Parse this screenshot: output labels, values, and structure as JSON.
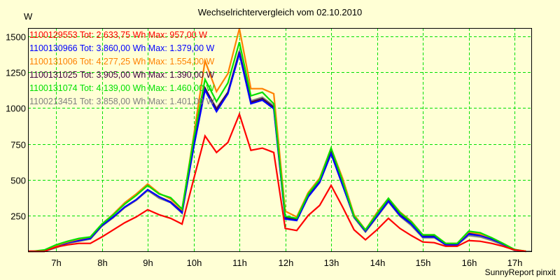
{
  "chart_data": {
    "type": "line",
    "title": "Wechselrichtervergleich vom 02.10.2010",
    "xlabel": "",
    "ylabel": "W",
    "ylim": [
      0,
      1560
    ],
    "xlim": [
      6.0,
      17.5
    ],
    "grid": true,
    "legend_position": "top-left inside",
    "y_ticks": [
      250,
      500,
      750,
      1000,
      1250,
      1500
    ],
    "x_ticks": [
      "7h",
      "8h",
      "9h",
      "10h",
      "11h",
      "12h",
      "13h",
      "14h",
      "15h",
      "16h",
      "17h"
    ],
    "x": [
      6.5,
      6.75,
      7.0,
      7.25,
      7.5,
      7.75,
      8.0,
      8.25,
      8.5,
      8.75,
      9.0,
      9.25,
      9.5,
      9.75,
      10.0,
      10.25,
      10.5,
      10.75,
      11.0,
      11.25,
      11.5,
      11.75,
      12.0,
      12.25,
      12.5,
      12.75,
      13.0,
      13.25,
      13.5,
      13.75,
      14.0,
      14.25,
      14.5,
      14.75,
      15.0,
      15.25,
      15.5,
      15.75,
      16.0,
      16.25,
      16.5,
      16.75,
      17.0,
      17.25
    ],
    "series": [
      {
        "name": "1100129553",
        "legend": "1100129553 Tot: 2.633,75 Wh Max: 957,00 W",
        "color": "#ff0000",
        "values": [
          0,
          0,
          30,
          45,
          55,
          55,
          100,
          150,
          200,
          240,
          290,
          255,
          230,
          190,
          500,
          805,
          690,
          760,
          957,
          705,
          720,
          690,
          160,
          145,
          250,
          320,
          460,
          310,
          150,
          80,
          150,
          230,
          160,
          110,
          65,
          60,
          35,
          35,
          75,
          70,
          55,
          35,
          10,
          0
        ]
      },
      {
        "name": "1100130966",
        "legend": "1100130966 Tot: 3.860,00 Wh Max: 1.379,00 W",
        "color": "#0000ff",
        "values": [
          0,
          0,
          30,
          60,
          75,
          90,
          180,
          240,
          310,
          360,
          430,
          380,
          340,
          270,
          720,
          1125,
          975,
          1100,
          1379,
          1030,
          1055,
          995,
          225,
          215,
          380,
          480,
          680,
          460,
          240,
          140,
          245,
          350,
          250,
          190,
          100,
          100,
          45,
          45,
          120,
          110,
          85,
          50,
          10,
          0
        ]
      },
      {
        "name": "1100131006",
        "legend": "1100131006 Tot: 4.277,25 Wh Max: 1.554,00 W",
        "color": "#ff8000",
        "values": [
          0,
          0,
          40,
          65,
          85,
          100,
          190,
          260,
          340,
          400,
          470,
          405,
          365,
          290,
          800,
          1330,
          1115,
          1240,
          1554,
          1135,
          1135,
          1100,
          280,
          240,
          410,
          510,
          720,
          510,
          255,
          150,
          270,
          370,
          275,
          210,
          115,
          115,
          55,
          55,
          135,
          120,
          95,
          55,
          12,
          0
        ]
      },
      {
        "name": "1100131025",
        "legend": "1100131025 Tot: 3.905,00 Wh Max: 1.390,00 W",
        "color": "#400040",
        "values": [
          0,
          0,
          30,
          60,
          75,
          90,
          180,
          240,
          310,
          360,
          430,
          380,
          345,
          275,
          730,
          1140,
          990,
          1110,
          1390,
          1040,
          1065,
          1005,
          235,
          220,
          385,
          485,
          690,
          470,
          245,
          145,
          250,
          355,
          255,
          195,
          105,
          105,
          50,
          50,
          125,
          115,
          88,
          50,
          10,
          0
        ]
      },
      {
        "name": "1100131074",
        "legend": "1100131074 Tot: 4.139,00 Wh Max: 1.460,00 W",
        "color": "#00e000",
        "values": [
          0,
          10,
          45,
          70,
          90,
          100,
          190,
          255,
          330,
          390,
          460,
          400,
          375,
          295,
          780,
          1200,
          1045,
          1175,
          1460,
          1085,
          1110,
          1030,
          245,
          230,
          400,
          500,
          720,
          490,
          245,
          150,
          260,
          370,
          270,
          205,
          115,
          115,
          55,
          55,
          140,
          130,
          95,
          55,
          12,
          0
        ]
      },
      {
        "name": "1100213451",
        "legend": "1100213451 Tot: 3.858,00 Wh Max: 1.401,00 W",
        "color": "#808080",
        "values": [
          0,
          0,
          25,
          55,
          70,
          85,
          175,
          235,
          305,
          355,
          425,
          370,
          340,
          265,
          725,
          1135,
          1000,
          1110,
          1401,
          1050,
          1075,
          1015,
          235,
          220,
          380,
          480,
          685,
          465,
          235,
          135,
          240,
          345,
          245,
          180,
          95,
          95,
          45,
          45,
          110,
          100,
          75,
          45,
          5,
          0
        ]
      }
    ]
  },
  "header": {
    "title": "Wechselrichtervergleich vom 02.10.2010",
    "unit": "W"
  },
  "footer": {
    "credit": "SunnyReport pinxit"
  },
  "colors": {
    "background": "#ffffd5",
    "grid": "#00e000",
    "axis": "#000000"
  }
}
